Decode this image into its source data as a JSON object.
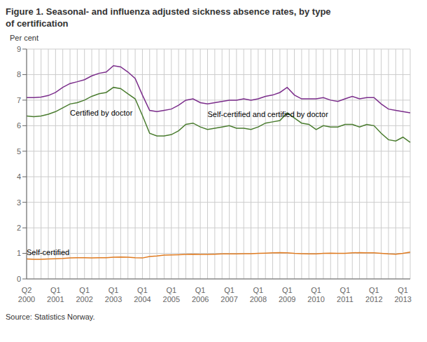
{
  "chart_data": {
    "type": "line",
    "title": "Figure 1. Seasonal- and influenza adjusted sickness absence rates, by type\nof certification",
    "ylabel": "Per cent",
    "source": "Source: Statistics Norway.",
    "ylim": [
      0,
      9
    ],
    "yticks": [
      0,
      1,
      2,
      3,
      4,
      5,
      6,
      7,
      8,
      9
    ],
    "grid": true,
    "categories": [
      "Q2\n2000",
      null,
      null,
      null,
      "Q1\n2001",
      null,
      null,
      null,
      "Q1\n2002",
      null,
      null,
      null,
      "Q1\n2003",
      null,
      null,
      null,
      "Q1\n2004",
      null,
      null,
      null,
      "Q1\n2005",
      null,
      null,
      null,
      "Q1\n2006",
      null,
      null,
      null,
      "Q1\n2007",
      null,
      null,
      null,
      "Q1\n2008",
      null,
      null,
      null,
      "Q1\n2009",
      null,
      null,
      null,
      "Q1\n2010",
      null,
      null,
      null,
      "Q1\n2011",
      null,
      null,
      null,
      "Q1\n2012",
      null,
      null,
      null,
      "Q1\n2013",
      null
    ],
    "series": [
      {
        "name": "Self-certified and certified by doctor",
        "color": "#7b2d8b",
        "values": [
          7.1,
          7.1,
          7.12,
          7.18,
          7.3,
          7.5,
          7.65,
          7.72,
          7.8,
          7.95,
          8.05,
          8.1,
          8.35,
          8.3,
          8.1,
          7.85,
          7.2,
          6.6,
          6.55,
          6.6,
          6.65,
          6.8,
          7.0,
          7.05,
          6.9,
          6.85,
          6.9,
          6.95,
          7.0,
          7.0,
          7.05,
          7.0,
          7.05,
          7.15,
          7.2,
          7.3,
          7.5,
          7.2,
          7.05,
          7.05,
          7.05,
          7.1,
          7.0,
          6.95,
          7.05,
          7.15,
          7.05,
          7.1,
          7.1,
          6.85,
          6.65,
          6.6,
          6.55,
          6.5
        ]
      },
      {
        "name": "Certified by doctor",
        "color": "#4a7c2f",
        "values": [
          6.38,
          6.35,
          6.38,
          6.45,
          6.55,
          6.7,
          6.85,
          6.9,
          7.0,
          7.15,
          7.25,
          7.3,
          7.5,
          7.45,
          7.25,
          7.05,
          6.4,
          5.7,
          5.6,
          5.6,
          5.65,
          5.8,
          6.05,
          6.1,
          5.95,
          5.85,
          5.9,
          5.95,
          6.0,
          5.9,
          5.9,
          5.85,
          5.95,
          6.1,
          6.15,
          6.2,
          6.5,
          6.3,
          6.1,
          6.05,
          5.85,
          6.0,
          5.95,
          5.95,
          6.05,
          6.05,
          5.95,
          6.05,
          6.0,
          5.7,
          5.45,
          5.4,
          5.55,
          5.35
        ]
      },
      {
        "name": "Self-certified",
        "color": "#e07b20",
        "values": [
          0.78,
          0.77,
          0.77,
          0.78,
          0.79,
          0.8,
          0.82,
          0.83,
          0.83,
          0.82,
          0.83,
          0.83,
          0.85,
          0.86,
          0.85,
          0.83,
          0.82,
          0.88,
          0.9,
          0.93,
          0.94,
          0.95,
          0.96,
          0.97,
          0.96,
          0.96,
          0.97,
          0.98,
          0.98,
          0.98,
          0.99,
          0.99,
          1.0,
          1.01,
          1.02,
          1.03,
          1.02,
          1.0,
          0.99,
          0.98,
          0.98,
          1.0,
          1.01,
          1.0,
          1.0,
          1.02,
          1.03,
          1.02,
          1.02,
          1.0,
          0.98,
          0.97,
          1.0,
          1.05
        ]
      }
    ],
    "annotations": [
      {
        "text": "Self-certified and certified by doctor",
        "x": 25,
        "y": 6.55
      },
      {
        "text": "Certified by doctor",
        "x": 6,
        "y": 6.6
      },
      {
        "text": "Self-certified",
        "x": 0,
        "y": 0.93
      }
    ]
  }
}
